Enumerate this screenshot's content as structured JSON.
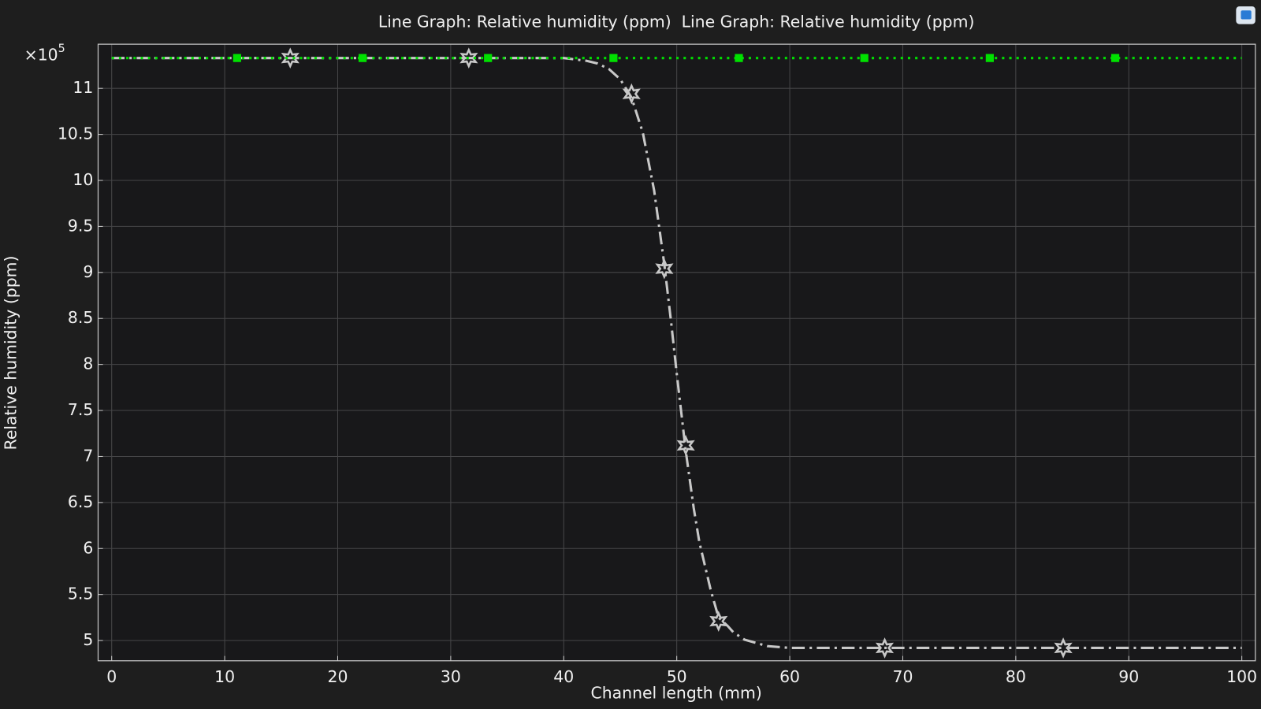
{
  "chart_data": {
    "type": "line",
    "title": "Line Graph: Relative humidity (ppm)  Line Graph: Relative humidity (ppm)",
    "x_label": "Channel length (mm)",
    "y_label": "Relative humidity (ppm)",
    "y_multiplier": {
      "base": "×10",
      "exponent": "5"
    },
    "xlim": [
      -1.2,
      101.2
    ],
    "ylim": [
      4.78,
      11.48
    ],
    "xticks": [
      0,
      10,
      20,
      30,
      40,
      50,
      60,
      70,
      80,
      90,
      100
    ],
    "yticks": [
      5,
      5.5,
      6,
      6.5,
      7,
      7.5,
      8,
      8.5,
      9,
      9.5,
      10,
      10.5,
      11
    ],
    "grid": true,
    "series": [
      {
        "color": "#c8c8c8",
        "line_style": "dashdot",
        "marker": "star",
        "x": [
          0,
          10,
          20,
          30,
          40,
          42,
          43,
          44,
          45,
          46,
          47,
          48,
          48.9,
          49.5,
          50,
          50.8,
          51.5,
          52,
          53,
          53.7,
          54.5,
          55,
          56,
          58,
          60,
          70,
          80,
          90,
          100
        ],
        "values": [
          11.33,
          11.33,
          11.33,
          11.33,
          11.33,
          11.3,
          11.27,
          11.21,
          11.1,
          10.9,
          10.52,
          9.89,
          9.09,
          8.46,
          7.9,
          7.06,
          6.44,
          6.07,
          5.55,
          5.25,
          5.16,
          5.09,
          5.01,
          4.94,
          4.92,
          4.92,
          4.92,
          4.92,
          4.92
        ],
        "markers": {
          "x": [
            15.8,
            31.6,
            46,
            48.9,
            50.8,
            53.7,
            68.4,
            84.2
          ],
          "values": [
            11.33,
            11.33,
            10.94,
            9.04,
            7.12,
            5.21,
            4.92,
            4.92
          ]
        }
      },
      {
        "color": "#00e000",
        "line_style": "dotted",
        "marker": "square",
        "x": [
          0,
          100
        ],
        "values": [
          11.33,
          11.33
        ],
        "markers": {
          "x": [
            11.1,
            22.2,
            33.3,
            44.4,
            55.5,
            66.6,
            77.7,
            88.8
          ],
          "values": [
            11.33,
            11.33,
            11.33,
            11.33,
            11.33,
            11.33,
            11.33,
            11.33
          ]
        }
      }
    ]
  }
}
